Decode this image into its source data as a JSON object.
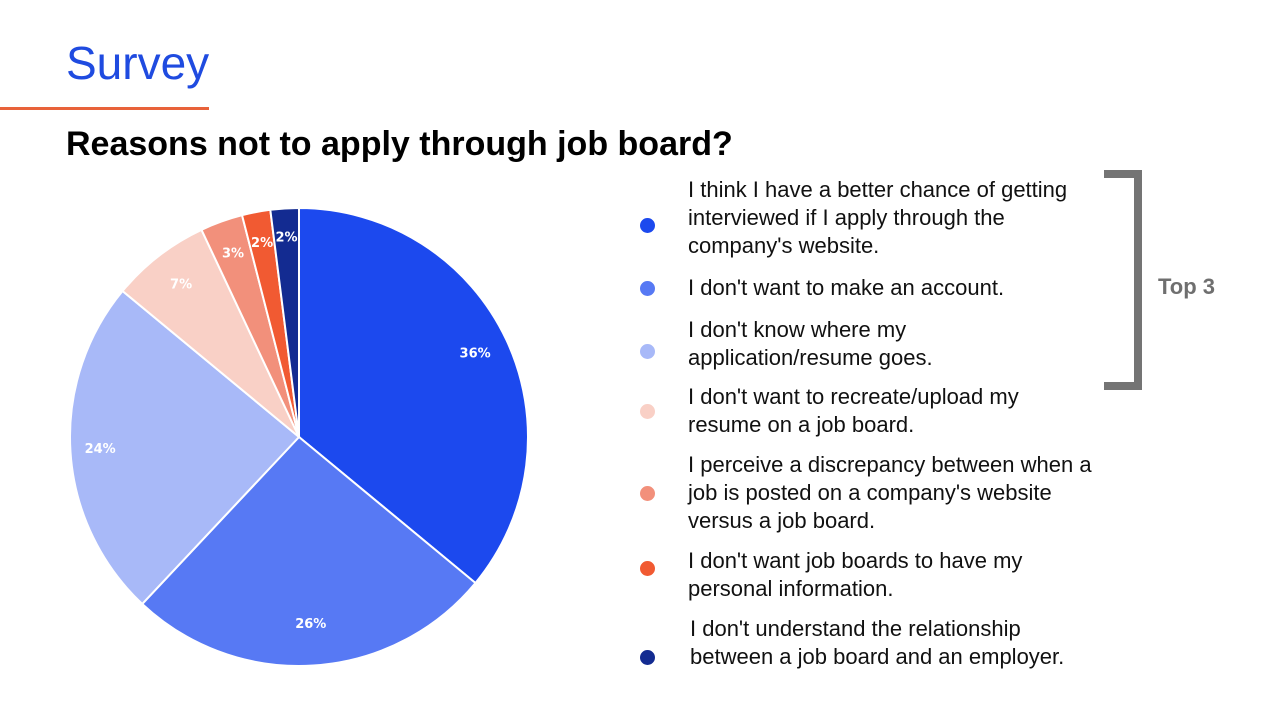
{
  "slide": {
    "title": "Survey"
  },
  "chart_data": {
    "type": "pie",
    "title": "Reasons not to apply through job board?",
    "slices": [
      {
        "label": "I think I have a better chance of getting interviewed if I apply through the company's website.",
        "value": 36,
        "display": "36%",
        "color": "#1c49ee"
      },
      {
        "label": "I don't want to make an account.",
        "value": 26,
        "display": "26%",
        "color": "#5779f4"
      },
      {
        "label": "I don't know where my application/resume goes.",
        "value": 24,
        "display": "24%",
        "color": "#a8b9f8"
      },
      {
        "label": "I don't want to recreate/upload my resume on a job board.",
        "value": 7,
        "display": "7%",
        "color": "#f9d0c6"
      },
      {
        "label": "I perceive a discrepancy between when a job is posted on a company's website versus a job board.",
        "value": 3,
        "display": "3%",
        "color": "#f2907b"
      },
      {
        "label": "I don't want job boards to have my personal information.",
        "value": 2,
        "display": "2%",
        "color": "#f15a32"
      },
      {
        "label": "I don't understand the relationship between a job board and an employer.",
        "value": 2,
        "display": "2%",
        "color": "#132b91"
      }
    ],
    "legend_placement": "right"
  },
  "annotation": {
    "label": "Top 3"
  }
}
